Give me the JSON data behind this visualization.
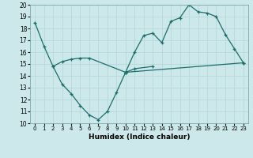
{
  "xlabel": "Humidex (Indice chaleur)",
  "xlim": [
    -0.5,
    23.5
  ],
  "ylim": [
    10,
    20
  ],
  "yticks": [
    10,
    11,
    12,
    13,
    14,
    15,
    16,
    17,
    18,
    19,
    20
  ],
  "xticks": [
    0,
    1,
    2,
    3,
    4,
    5,
    6,
    7,
    8,
    9,
    10,
    11,
    12,
    13,
    14,
    15,
    16,
    17,
    18,
    19,
    20,
    21,
    22,
    23
  ],
  "bg_color": "#cce8ea",
  "grid_color": "#b0d4d8",
  "line_color": "#1a6e6a",
  "series": [
    {
      "x": [
        0,
        1,
        2,
        3,
        4,
        5,
        6,
        10,
        23
      ],
      "y": [
        18.5,
        16.5,
        14.8,
        15.2,
        15.4,
        15.5,
        15.5,
        14.3,
        15.1
      ]
    },
    {
      "x": [
        2,
        3,
        4,
        5,
        6,
        7,
        8,
        9,
        10,
        11,
        13
      ],
      "y": [
        14.8,
        13.3,
        12.5,
        11.5,
        10.7,
        10.3,
        11.0,
        12.6,
        14.3,
        14.6,
        14.8
      ]
    },
    {
      "x": [
        10,
        11,
        12,
        13,
        14,
        15,
        16,
        17,
        18,
        19,
        20,
        21,
        22,
        23
      ],
      "y": [
        14.3,
        16.0,
        17.4,
        17.6,
        16.8,
        18.6,
        18.9,
        20.0,
        19.4,
        19.3,
        19.0,
        17.5,
        16.3,
        15.1
      ]
    }
  ]
}
